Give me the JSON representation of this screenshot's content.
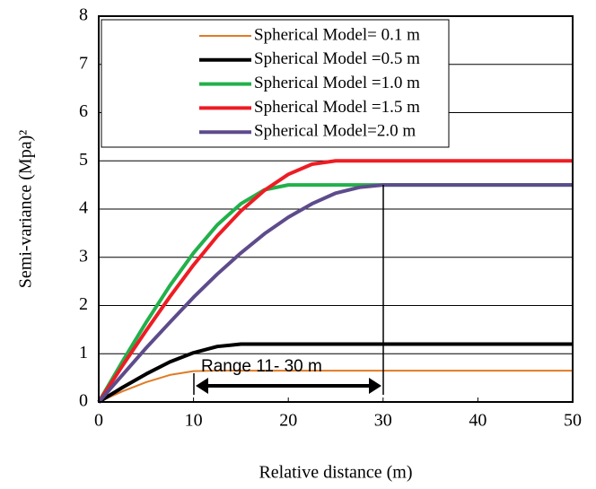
{
  "chart_data": {
    "type": "line",
    "x_label": "Relative distance (m)",
    "y_label": "Semi-variance (Mpa)²",
    "annotation": "Range 11- 30 m",
    "x": [
      0,
      2.5,
      5,
      7.5,
      10,
      12.5,
      15,
      17.5,
      20,
      22.5,
      25,
      27.5,
      30,
      40,
      50
    ],
    "series": [
      {
        "name": "Spherical Model= 0.1 m",
        "color": "#e07b24",
        "width": 2,
        "values": [
          0,
          0.22,
          0.41,
          0.56,
          0.64,
          0.65,
          0.65,
          0.65,
          0.65,
          0.65,
          0.65,
          0.65,
          0.65,
          0.65,
          0.65
        ]
      },
      {
        "name": "Spherical Model =0.5 m",
        "color": "#000000",
        "width": 4,
        "values": [
          0,
          0.3,
          0.58,
          0.83,
          1.02,
          1.15,
          1.2,
          1.2,
          1.2,
          1.2,
          1.2,
          1.2,
          1.2,
          1.2,
          1.2
        ]
      },
      {
        "name": "Spherical Model =1.0 m",
        "color": "#22b04b",
        "width": 4,
        "values": [
          0,
          0.84,
          1.65,
          2.41,
          3.09,
          3.67,
          4.11,
          4.4,
          4.5,
          4.5,
          4.5,
          4.5,
          4.5,
          4.5,
          4.5
        ]
      },
      {
        "name": "Spherical Model =1.5 m",
        "color": "#ee1c24",
        "width": 4,
        "values": [
          0,
          0.75,
          1.48,
          2.18,
          2.84,
          3.44,
          3.96,
          4.39,
          4.72,
          4.93,
          5,
          5,
          5,
          5,
          5
        ]
      },
      {
        "name": "Spherical Model=2.0 m",
        "color": "#5e4b8b",
        "width": 4,
        "values": [
          0,
          0.56,
          1.12,
          1.65,
          2.17,
          2.65,
          3.09,
          3.49,
          3.83,
          4.11,
          4.33,
          4.45,
          4.5,
          4.5,
          4.5
        ]
      }
    ],
    "xlim": [
      0,
      50
    ],
    "xticks": [
      0,
      10,
      20,
      30,
      40,
      50
    ],
    "ylim": [
      0,
      8
    ],
    "yticks": [
      0,
      1,
      2,
      3,
      4,
      5,
      6,
      7,
      8
    ],
    "grid": true
  }
}
